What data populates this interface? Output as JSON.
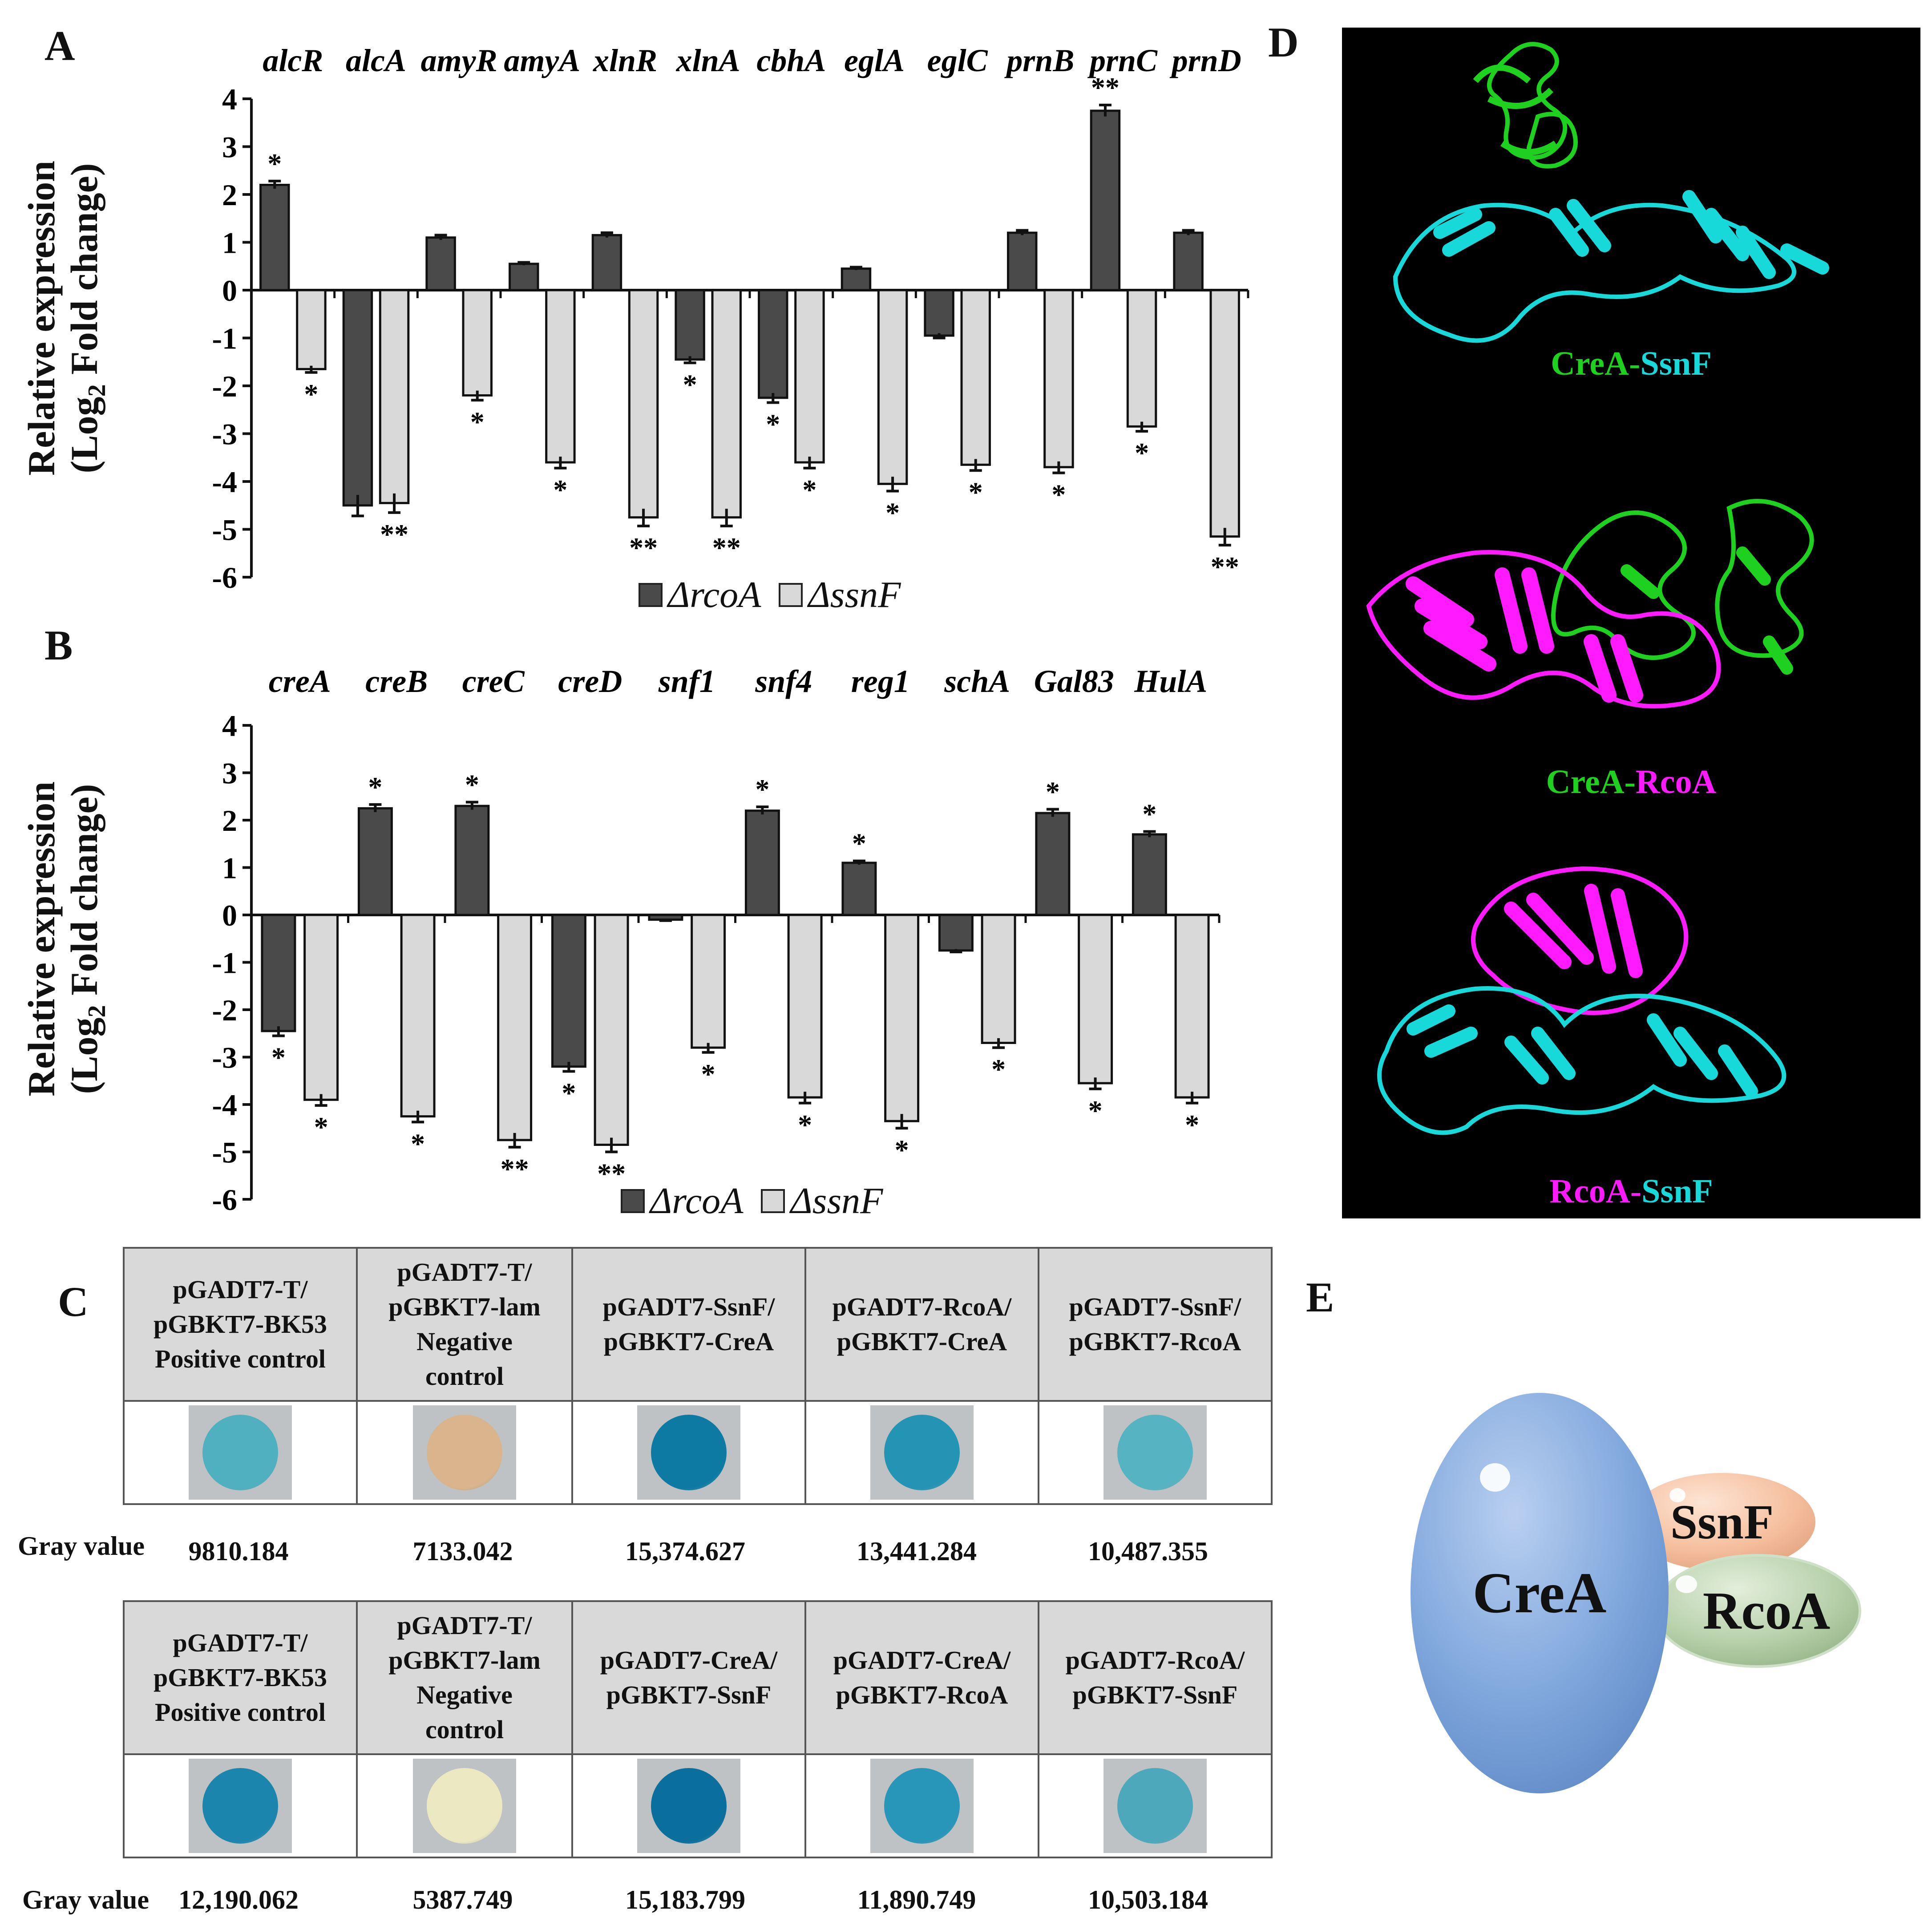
{
  "panels": {
    "a": "A",
    "b": "B",
    "c": "C",
    "d": "D",
    "e": "E"
  },
  "legend": {
    "rcoa": "ΔrcoA",
    "ssnf": "ΔssnF",
    "rcoa_color": "#4a4a4a",
    "ssnf_color": "#d9d9d9"
  },
  "ylabel": {
    "line1": "Relative expression",
    "line2_pre": "(Log",
    "line2_sub": "2",
    "line2_post": " Fold change)"
  },
  "chart_data": [
    {
      "type": "bar",
      "panel": "A",
      "categories": [
        "alcR",
        "alcA",
        "amyR",
        "amyA",
        "xlnR",
        "xlnA",
        "cbhA",
        "eglA",
        "eglC",
        "prnB",
        "prnC",
        "prnD"
      ],
      "ylim": [
        -6,
        4
      ],
      "yticks": [
        4,
        3,
        2,
        1,
        0,
        -1,
        -2,
        -3,
        -4,
        -5,
        -6
      ],
      "series": [
        {
          "name": "ΔrcoA",
          "values": [
            2.2,
            -4.5,
            1.1,
            0.55,
            1.15,
            -1.45,
            -2.25,
            0.45,
            -0.95,
            1.2,
            3.75,
            1.2
          ],
          "errors": [
            0.08,
            0.22,
            0.05,
            0.03,
            0.05,
            0.07,
            0.1,
            0.03,
            0.05,
            0.05,
            0.12,
            0.05
          ],
          "sig": [
            "*",
            "",
            "",
            "",
            "",
            "*",
            "*",
            "",
            "",
            "",
            "**",
            ""
          ]
        },
        {
          "name": "ΔssnF",
          "values": [
            -1.65,
            -4.45,
            -2.2,
            -3.6,
            -4.75,
            -4.75,
            -3.6,
            -4.05,
            -3.65,
            -3.7,
            -2.85,
            -5.15
          ],
          "errors": [
            0.07,
            0.2,
            0.1,
            0.12,
            0.18,
            0.18,
            0.12,
            0.15,
            0.12,
            0.12,
            0.1,
            0.18
          ],
          "sig": [
            "*",
            "**",
            "*",
            "*",
            "**",
            "**",
            "*",
            "*",
            "*",
            "*",
            "*",
            "**"
          ]
        }
      ]
    },
    {
      "type": "bar",
      "panel": "B",
      "categories": [
        "creA",
        "creB",
        "creC",
        "creD",
        "snf1",
        "snf4",
        "reg1",
        "schA",
        "Gal83",
        "HulA"
      ],
      "ylim": [
        -6,
        4
      ],
      "yticks": [
        4,
        3,
        2,
        1,
        0,
        -1,
        -2,
        -3,
        -4,
        -5,
        -6
      ],
      "series": [
        {
          "name": "ΔrcoA",
          "values": [
            -2.45,
            2.25,
            2.3,
            -3.2,
            -0.1,
            2.2,
            1.1,
            -0.75,
            2.15,
            1.7
          ],
          "errors": [
            0.1,
            0.08,
            0.08,
            0.1,
            0.02,
            0.08,
            0.04,
            0.03,
            0.08,
            0.06
          ],
          "sig": [
            "*",
            "*",
            "*",
            "*",
            "",
            "*",
            "*",
            "",
            "*",
            "*"
          ]
        },
        {
          "name": "ΔssnF",
          "values": [
            -3.9,
            -4.25,
            -4.75,
            -4.85,
            -2.8,
            -3.85,
            -4.35,
            -2.7,
            -3.55,
            -3.85
          ],
          "errors": [
            0.12,
            0.12,
            0.15,
            0.15,
            0.1,
            0.12,
            0.15,
            0.1,
            0.12,
            0.12
          ],
          "sig": [
            "*",
            "*",
            "**",
            "**",
            "*",
            "*",
            "*",
            "*",
            "*",
            "*"
          ]
        }
      ]
    }
  ],
  "y2h": {
    "gray_label": "Gray value",
    "table1": [
      {
        "l1": "pGADT7-T/",
        "l2": "pGBKT7-BK53",
        "l3": "Positive control",
        "l4": "",
        "gray": "9810.184",
        "color": "#4fb0c0"
      },
      {
        "l1": "pGADT7-T/",
        "l2": "pGBKT7-lam",
        "l3": "Negative",
        "l4": "control",
        "gray": "7133.042",
        "color": "#d9b48c"
      },
      {
        "l1": "pGADT7-SsnF/",
        "l2": "pGBKT7-CreA",
        "l3": "",
        "l4": "",
        "gray": "15,374.627",
        "color": "#0d7aa3"
      },
      {
        "l1": "pGADT7-RcoA/",
        "l2": "pGBKT7-CreA",
        "l3": "",
        "l4": "",
        "gray": "13,441.284",
        "color": "#2494b4"
      },
      {
        "l1": "pGADT7-SsnF/",
        "l2": "pGBKT7-RcoA",
        "l3": "",
        "l4": "",
        "gray": "10,487.355",
        "color": "#56b4c2"
      }
    ],
    "table2": [
      {
        "l1": "pGADT7-T/",
        "l2": "pGBKT7-BK53",
        "l3": "Positive control",
        "l4": "",
        "gray": "12,190.062",
        "color": "#1c85ad"
      },
      {
        "l1": "pGADT7-T/",
        "l2": "pGBKT7-lam",
        "l3": "Negative",
        "l4": "control",
        "gray": "5387.749",
        "color": "#ece8c2"
      },
      {
        "l1": "pGADT7-CreA/",
        "l2": "pGBKT7-SsnF",
        "l3": "",
        "l4": "",
        "gray": "15,183.799",
        "color": "#0a6f9c"
      },
      {
        "l1": "pGADT7-CreA/",
        "l2": "pGBKT7-RcoA",
        "l3": "",
        "l4": "",
        "gray": "11,890.749",
        "color": "#2796b8"
      },
      {
        "l1": "pGADT7-RcoA/",
        "l2": "pGBKT7-SsnF",
        "l3": "",
        "l4": "",
        "gray": "10,503.184",
        "color": "#4ea8bc"
      }
    ]
  },
  "structures": {
    "s1": {
      "a": "CreA",
      "sep": "-",
      "b": "SsnF"
    },
    "s2": {
      "a": "CreA",
      "sep": "-",
      "b": "RcoA"
    },
    "s3": {
      "a": "RcoA",
      "sep": "-",
      "b": "SsnF"
    },
    "colors": {
      "crea": "#1fd11f",
      "ssnf": "#18d9d9",
      "rcoa": "#ff1aff"
    }
  },
  "model": {
    "crea": "CreA",
    "ssnf": "SsnF",
    "rcoa": "RcoA"
  }
}
